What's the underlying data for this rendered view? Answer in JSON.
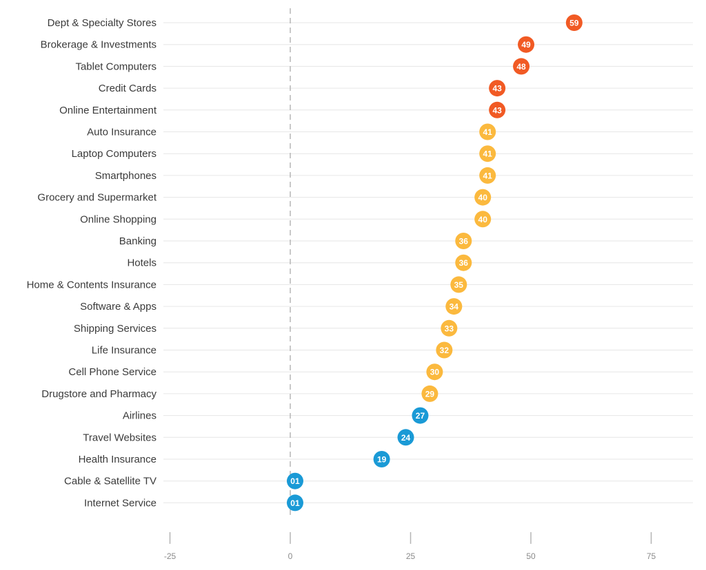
{
  "chart_data": {
    "type": "scatter",
    "title": "",
    "xlabel": "",
    "ylabel": "",
    "xlim": [
      -25,
      85
    ],
    "x_ticks": [
      -25,
      0,
      25,
      50,
      75
    ],
    "x_tick_labels": [
      "-25",
      "0",
      "25",
      "50",
      "75"
    ],
    "grid": true,
    "colors": {
      "high": "#f15a24",
      "mid": "#fbb93e",
      "low": "#1a9ad6"
    },
    "points": [
      {
        "category": "Dept & Specialty Stores",
        "value": 59,
        "label": "59",
        "group": "high"
      },
      {
        "category": "Brokerage & Investments",
        "value": 49,
        "label": "49",
        "group": "high"
      },
      {
        "category": "Tablet Computers",
        "value": 48,
        "label": "48",
        "group": "high"
      },
      {
        "category": "Credit Cards",
        "value": 43,
        "label": "43",
        "group": "high"
      },
      {
        "category": "Online Entertainment",
        "value": 43,
        "label": "43",
        "group": "high"
      },
      {
        "category": "Auto Insurance",
        "value": 41,
        "label": "41",
        "group": "mid"
      },
      {
        "category": "Laptop Computers",
        "value": 41,
        "label": "41",
        "group": "mid"
      },
      {
        "category": "Smartphones",
        "value": 41,
        "label": "41",
        "group": "mid"
      },
      {
        "category": "Grocery and Supermarket",
        "value": 40,
        "label": "40",
        "group": "mid"
      },
      {
        "category": "Online Shopping",
        "value": 40,
        "label": "40",
        "group": "mid"
      },
      {
        "category": "Banking",
        "value": 36,
        "label": "36",
        "group": "mid"
      },
      {
        "category": "Hotels",
        "value": 36,
        "label": "36",
        "group": "mid"
      },
      {
        "category": "Home & Contents Insurance",
        "value": 35,
        "label": "35",
        "group": "mid"
      },
      {
        "category": "Software & Apps",
        "value": 34,
        "label": "34",
        "group": "mid"
      },
      {
        "category": "Shipping Services",
        "value": 33,
        "label": "33",
        "group": "mid"
      },
      {
        "category": "Life Insurance",
        "value": 32,
        "label": "32",
        "group": "mid"
      },
      {
        "category": "Cell Phone Service",
        "value": 30,
        "label": "30",
        "group": "mid"
      },
      {
        "category": "Drugstore and Pharmacy",
        "value": 29,
        "label": "29",
        "group": "mid"
      },
      {
        "category": "Airlines",
        "value": 27,
        "label": "27",
        "group": "low"
      },
      {
        "category": "Travel Websites",
        "value": 24,
        "label": "24",
        "group": "low"
      },
      {
        "category": "Health Insurance",
        "value": 19,
        "label": "19",
        "group": "low"
      },
      {
        "category": "Cable & Satellite TV",
        "value": 1,
        "label": "01",
        "group": "low"
      },
      {
        "category": "Internet Service",
        "value": 1,
        "label": "01",
        "group": "low"
      }
    ]
  }
}
